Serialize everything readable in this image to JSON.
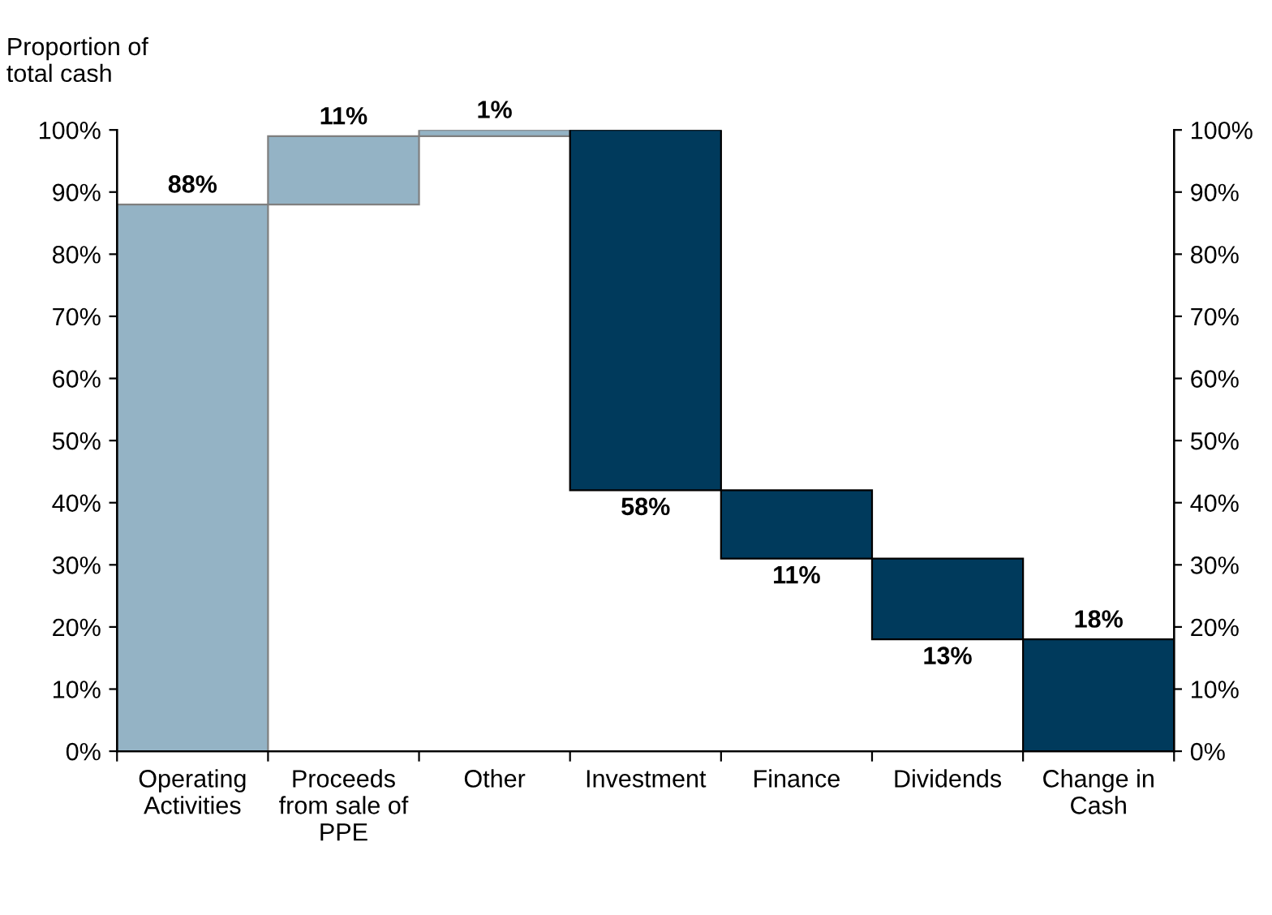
{
  "chart_data": {
    "type": "bar",
    "ylabel": "Proportion of\ntotal cash",
    "categories": [
      "Operating\nActivities",
      "Proceeds\nfrom sale of\nPPE",
      "Other",
      "Investment",
      "Finance",
      "Dividends",
      "Change in\nCash"
    ],
    "base": [
      0,
      88,
      99,
      100,
      42,
      31,
      0
    ],
    "values": [
      88,
      11,
      1,
      -58,
      -11,
      -13,
      18
    ],
    "value_labels": [
      "88%",
      "11%",
      "1%",
      "58%",
      "11%",
      "13%",
      "18%"
    ],
    "colors": [
      "#94b3c5",
      "#94b3c5",
      "#94b3c5",
      "#003a5c",
      "#003a5c",
      "#003a5c",
      "#003a5c"
    ],
    "ylim": [
      0,
      100
    ],
    "yticks": [
      {
        "value": 0,
        "label": "0%"
      },
      {
        "value": 10,
        "label": "10%"
      },
      {
        "value": 20,
        "label": "20%"
      },
      {
        "value": 30,
        "label": "30%"
      },
      {
        "value": 40,
        "label": "40%"
      },
      {
        "value": 50,
        "label": "50%"
      },
      {
        "value": 60,
        "label": "60%"
      },
      {
        "value": 70,
        "label": "70%"
      },
      {
        "value": 80,
        "label": "80%"
      },
      {
        "value": 90,
        "label": "90%"
      },
      {
        "value": 100,
        "label": "100%"
      }
    ],
    "y2lim": [
      0,
      100
    ],
    "y2ticks": [
      {
        "value": 0,
        "label": "0%"
      },
      {
        "value": 10,
        "label": "10%"
      },
      {
        "value": 20,
        "label": "20%"
      },
      {
        "value": 30,
        "label": "30%"
      },
      {
        "value": 40,
        "label": "40%"
      },
      {
        "value": 50,
        "label": "50%"
      },
      {
        "value": 60,
        "label": "60%"
      },
      {
        "value": 70,
        "label": "70%"
      },
      {
        "value": 80,
        "label": "80%"
      },
      {
        "value": 90,
        "label": "90%"
      },
      {
        "value": 100,
        "label": "100%"
      }
    ],
    "grid": false,
    "legend": false
  }
}
